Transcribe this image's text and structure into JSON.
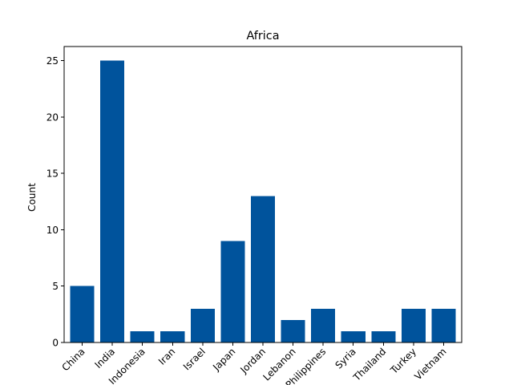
{
  "chart_data": {
    "type": "bar",
    "title": "Africa",
    "xlabel": "",
    "ylabel": "Count",
    "categories": [
      "China",
      "India",
      "Indonesia",
      "Iran",
      "Israel",
      "Japan",
      "Jordan",
      "Lebanon",
      "Philippines",
      "Syria",
      "Thailand",
      "Turkey",
      "Vietnam"
    ],
    "values": [
      5,
      25,
      1,
      1,
      3,
      9,
      13,
      2,
      3,
      1,
      1,
      3,
      3
    ],
    "ylim": [
      0,
      26.25
    ],
    "yticks": [
      0,
      5,
      10,
      15,
      20,
      25
    ],
    "bar_color": "#00539c",
    "grid": false,
    "legend": "none"
  }
}
